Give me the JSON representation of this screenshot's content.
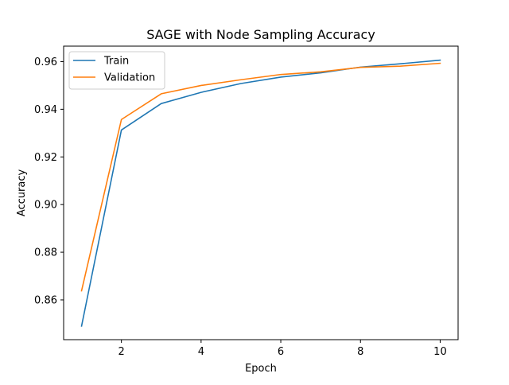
{
  "chart_data": {
    "type": "line",
    "title": "SAGE with Node Sampling Accuracy",
    "xlabel": "Epoch",
    "ylabel": "Accuracy",
    "xlim": [
      0.55,
      10.45
    ],
    "ylim": [
      0.8433,
      0.9665
    ],
    "xticks": [
      2,
      4,
      6,
      8,
      10
    ],
    "xtick_labels": [
      "2",
      "4",
      "6",
      "8",
      "10"
    ],
    "yticks": [
      0.86,
      0.88,
      0.9,
      0.92,
      0.94,
      0.96
    ],
    "ytick_labels": [
      "0.86",
      "0.88",
      "0.90",
      "0.92",
      "0.94",
      "0.96"
    ],
    "grid": false,
    "legend_position": "upper-left",
    "x": [
      1,
      2,
      3,
      4,
      5,
      6,
      7,
      8,
      9,
      10
    ],
    "series": [
      {
        "name": "Train",
        "color": "#1f77b4",
        "values": [
          0.849,
          0.9313,
          0.9424,
          0.9471,
          0.9508,
          0.9535,
          0.9553,
          0.9577,
          0.9591,
          0.9606
        ]
      },
      {
        "name": "Validation",
        "color": "#ff7f0e",
        "values": [
          0.8638,
          0.9357,
          0.9465,
          0.95,
          0.9524,
          0.9546,
          0.9557,
          0.9576,
          0.9581,
          0.9593
        ]
      }
    ]
  }
}
